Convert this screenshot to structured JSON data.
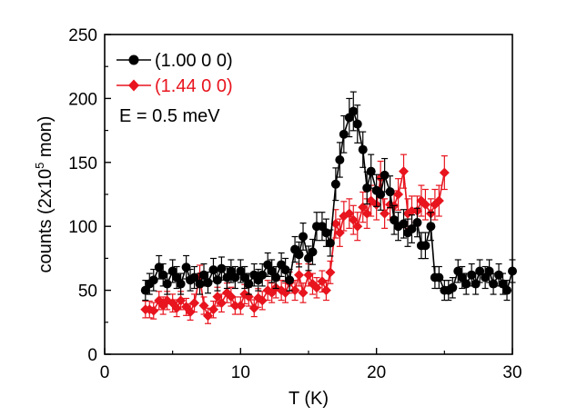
{
  "chart_data": {
    "type": "scatter",
    "title": "",
    "xlabel": "T (K)",
    "ylabel_parts": {
      "pre": "counts (2x10",
      "sup": "5",
      "post": " mon)"
    },
    "xlim": [
      0,
      30
    ],
    "ylim": [
      0,
      250
    ],
    "xticks": [
      0,
      10,
      20,
      30
    ],
    "yticks": [
      0,
      50,
      100,
      150,
      200,
      250
    ],
    "grid": false,
    "legend_position": "top-left",
    "annotation": "E = 0.5 meV",
    "series": [
      {
        "name": "(1.00 0 0)",
        "color": "#000000",
        "marker": "circle",
        "x": [
          3.0,
          3.3,
          3.6,
          4.0,
          4.3,
          4.6,
          5.0,
          5.3,
          5.6,
          6.0,
          6.3,
          6.6,
          7.0,
          7.3,
          7.6,
          8.0,
          8.3,
          8.6,
          9.0,
          9.3,
          9.6,
          10.0,
          10.3,
          10.6,
          11.0,
          11.3,
          11.6,
          12.0,
          12.3,
          12.6,
          13.0,
          13.3,
          13.6,
          14.0,
          14.3,
          14.6,
          15.0,
          15.3,
          15.6,
          16.0,
          16.3,
          16.6,
          17.0,
          17.3,
          17.6,
          18.0,
          18.3,
          18.6,
          19.0,
          19.3,
          19.6,
          20.0,
          20.3,
          20.6,
          21.0,
          21.3,
          21.6,
          22.0,
          22.3,
          22.6,
          23.0,
          23.3,
          23.6,
          24.0,
          24.3,
          24.6,
          25.0,
          25.3,
          25.6,
          26.0,
          26.3,
          26.6,
          27.0,
          27.3,
          27.6,
          28.0,
          28.3,
          28.6,
          29.0,
          29.3,
          29.6,
          30.0
        ],
        "y": [
          50,
          55,
          58,
          68,
          62,
          55,
          65,
          60,
          55,
          68,
          58,
          60,
          55,
          62,
          56,
          66,
          58,
          67,
          60,
          65,
          60,
          65,
          60,
          55,
          62,
          58,
          62,
          70,
          65,
          60,
          70,
          66,
          58,
          82,
          78,
          92,
          75,
          80,
          100,
          100,
          95,
          87,
          133,
          152,
          172,
          185,
          190,
          180,
          160,
          130,
          143,
          128,
          125,
          140,
          127,
          105,
          100,
          102,
          95,
          98,
          103,
          85,
          85,
          100,
          60,
          60,
          50,
          50,
          52,
          65,
          60,
          55,
          62,
          55,
          65,
          60,
          65,
          55,
          62,
          55,
          50,
          65
        ]
      },
      {
        "name": "(1.44 0 0)",
        "color": "#e8141e",
        "marker": "diamond",
        "x": [
          3.0,
          3.3,
          3.6,
          4.0,
          4.3,
          4.6,
          5.0,
          5.3,
          5.6,
          6.0,
          6.3,
          6.6,
          7.0,
          7.3,
          7.6,
          8.0,
          8.3,
          8.6,
          9.0,
          9.3,
          9.6,
          10.0,
          10.3,
          10.6,
          11.0,
          11.3,
          11.6,
          12.0,
          12.3,
          12.6,
          13.0,
          13.3,
          13.6,
          14.0,
          14.3,
          14.6,
          15.0,
          15.3,
          15.6,
          16.0,
          16.3,
          16.6,
          17.0,
          17.3,
          17.6,
          18.0,
          18.3,
          18.6,
          19.0,
          19.3,
          19.6,
          20.0,
          20.3,
          20.6,
          21.0,
          21.3,
          21.6,
          22.0,
          22.3,
          22.6,
          23.0,
          23.3,
          23.6,
          24.0,
          24.3,
          24.6,
          25.0
        ],
        "y": [
          35,
          35,
          34,
          42,
          38,
          42,
          40,
          36,
          42,
          37,
          33,
          40,
          61,
          38,
          30,
          35,
          45,
          40,
          48,
          45,
          38,
          38,
          47,
          45,
          36,
          44,
          42,
          50,
          48,
          52,
          50,
          48,
          56,
          50,
          62,
          48,
          62,
          55,
          52,
          57,
          50,
          64,
          102,
          95,
          108,
          110,
          105,
          100,
          115,
          110,
          120,
          117,
          138,
          110,
          117,
          116,
          125,
          143,
          110,
          112,
          112,
          120,
          117,
          110,
          117,
          120,
          142
        ]
      }
    ]
  }
}
